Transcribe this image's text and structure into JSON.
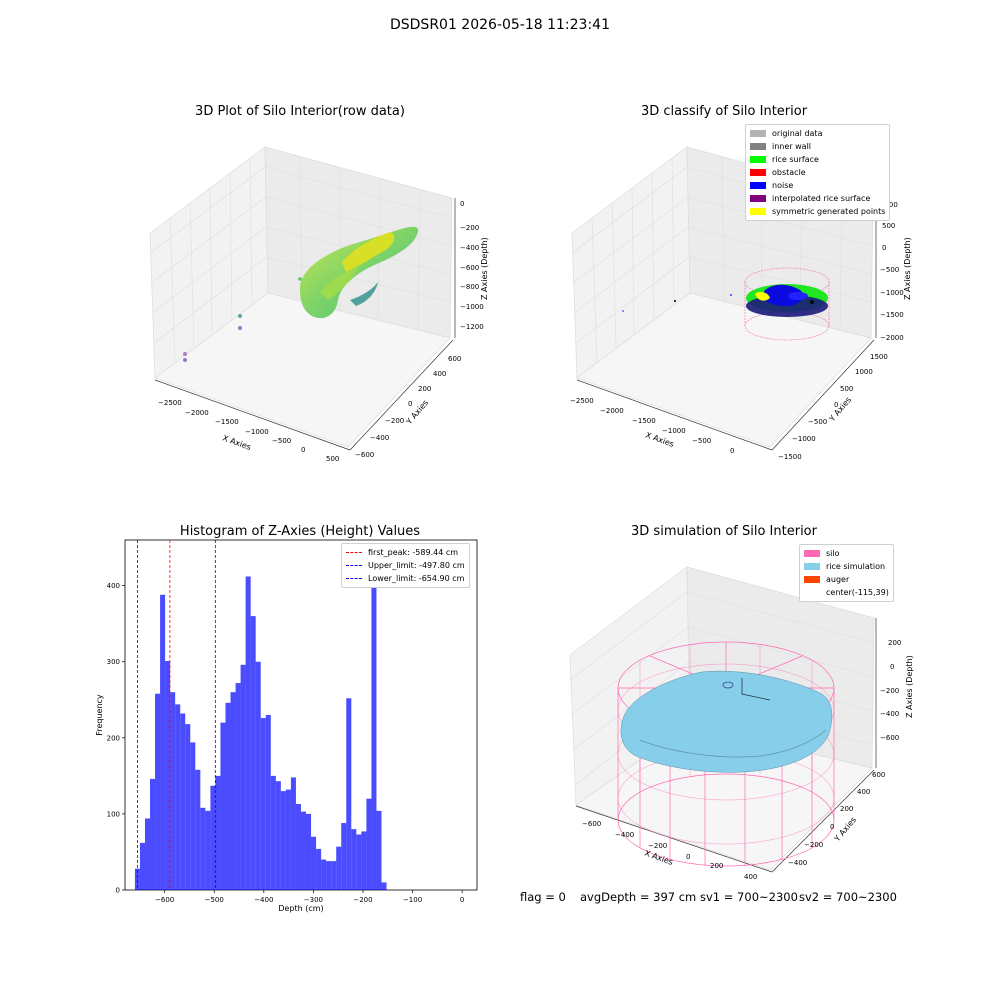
{
  "suptitle": "DSDSR01 2026-05-18 11:23:41",
  "panels": {
    "raw": {
      "title": "3D Plot of Silo Interior(row data)",
      "xlabel": "X Axies",
      "ylabel": "Y Axies",
      "zlabel": "Z Axies (Depth)",
      "xticks": [
        "−2500",
        "−2000",
        "−1500",
        "−1000",
        "−500",
        "0",
        "500"
      ],
      "yticks": [
        "−600",
        "−400",
        "−200",
        "0",
        "200",
        "400",
        "600"
      ],
      "zticks": [
        "0",
        "−200",
        "−400",
        "−600",
        "−800",
        "−1000",
        "−1200"
      ]
    },
    "classify": {
      "title": "3D classify of Silo Interior",
      "xlabel": "X Axies",
      "ylabel": "Y Axies",
      "zlabel": "Z Axies (Depth)",
      "xticks": [
        "−2500",
        "−2000",
        "−1500",
        "−1000",
        "−500",
        "0"
      ],
      "yticks": [
        "−1500",
        "−1000",
        "−500",
        "0",
        "500",
        "1000",
        "1500"
      ],
      "zticks": [
        "1000",
        "500",
        "0",
        "−500",
        "−1000",
        "−1500",
        "−2000"
      ],
      "legend": [
        {
          "label": "original data",
          "color": "#b3b3b3"
        },
        {
          "label": "inner wall",
          "color": "#808080"
        },
        {
          "label": "rice surface",
          "color": "#00ff00"
        },
        {
          "label": "obstacle",
          "color": "#ff0000"
        },
        {
          "label": "noise",
          "color": "#0000ff"
        },
        {
          "label": "interpolated rice surface",
          "color": "#800080"
        },
        {
          "label": "symmetric generated points",
          "color": "#ffff00"
        }
      ]
    },
    "simulation": {
      "title": "3D simulation of Silo Interior",
      "xlabel": "X Axies",
      "ylabel": "Y Axies",
      "zlabel": "Z Axies (Depth)",
      "xticks": [
        "−600",
        "−400",
        "−200",
        "0",
        "200",
        "400"
      ],
      "yticks": [
        "−400",
        "−200",
        "0",
        "200",
        "400",
        "600"
      ],
      "zticks": [
        "200",
        "0",
        "−200",
        "−400",
        "−600"
      ],
      "legend": [
        {
          "label": "silo",
          "color": "#ff69b4"
        },
        {
          "label": "rice simulation",
          "color": "#87ceeb"
        },
        {
          "label": "auger",
          "color": "#ff4500"
        },
        {
          "label": "center(-115,39)",
          "color": ""
        }
      ]
    }
  },
  "footer": {
    "flag": "flag = 0",
    "avg_depth": "avgDepth = 397 cm",
    "sv1": "sv1 = 700~2300",
    "sv2": "sv2 = 700~2300"
  },
  "chart_data": [
    {
      "type": "histogram",
      "title": "Histogram of Z-Axies (Height) Values",
      "xlabel": "Depth (cm)",
      "ylabel": "Frequency",
      "xlim": [
        -680,
        30
      ],
      "ylim": [
        0,
        460
      ],
      "xticks": [
        -600,
        -500,
        -400,
        -300,
        -200,
        -100,
        0
      ],
      "yticks": [
        0,
        100,
        200,
        300,
        400
      ],
      "bar_color": "#0000ff",
      "bins": {
        "start": -660,
        "width": 10.15,
        "counts": [
          28,
          62,
          94,
          146,
          258,
          388,
          301,
          260,
          244,
          232,
          218,
          194,
          158,
          108,
          104,
          137,
          150,
          220,
          246,
          260,
          272,
          296,
          412,
          360,
          300,
          226,
          230,
          150,
          143,
          130,
          132,
          148,
          113,
          103,
          100,
          70,
          54,
          40,
          38,
          38,
          57,
          88,
          252,
          80,
          73,
          77,
          120,
          435,
          104,
          10
        ]
      },
      "lines": [
        {
          "label": "first_peak: -589.44 cm",
          "x": -589.44,
          "color": "#ff0000"
        },
        {
          "label": "Upper_limit: -497.80 cm",
          "x": -497.8,
          "color": "#0000ff"
        },
        {
          "label": "Lower_limit: -654.90 cm",
          "x": -654.9,
          "color": "#0000ff"
        }
      ]
    }
  ]
}
